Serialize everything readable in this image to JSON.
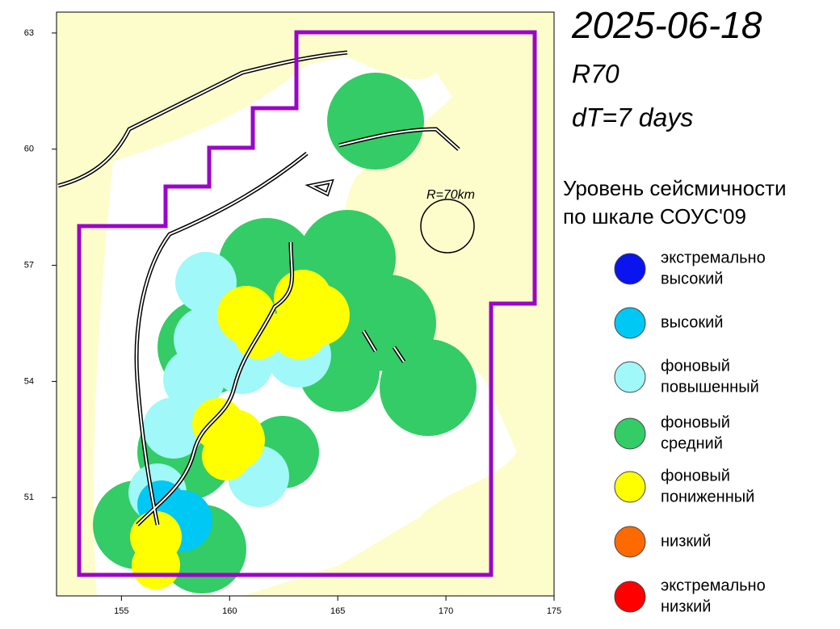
{
  "header": {
    "date": "2025-06-18",
    "radius": "R70",
    "window": "dT=7 days"
  },
  "map": {
    "xlim": [
      152,
      175
    ],
    "ylim": [
      48.46,
      63.54
    ],
    "xticks": [
      155,
      160,
      165,
      170,
      175
    ],
    "yticks": [
      51,
      54,
      57,
      60,
      63
    ],
    "circle_label": "R=70km"
  },
  "legend": {
    "title": [
      "Уровень сейсмичности",
      "по шкале СОУС'09"
    ],
    "items": [
      {
        "label": [
          "экстремально",
          "высокий"
        ],
        "color": "#0a14ee"
      },
      {
        "label": [
          "высокий"
        ],
        "color": "#00c8f5"
      },
      {
        "label": [
          "фоновый",
          "повышенный"
        ],
        "color": "#a0f8f8"
      },
      {
        "label": [
          "фоновый",
          "средний"
        ],
        "color": "#33cc66"
      },
      {
        "label": [
          "фоновый",
          "пониженный"
        ],
        "color": "#ffff00"
      },
      {
        "label": [
          "низкий"
        ],
        "color": "#ff6a00"
      },
      {
        "label": [
          "экстремально",
          "низкий"
        ],
        "color": "#ff0000"
      }
    ]
  }
}
